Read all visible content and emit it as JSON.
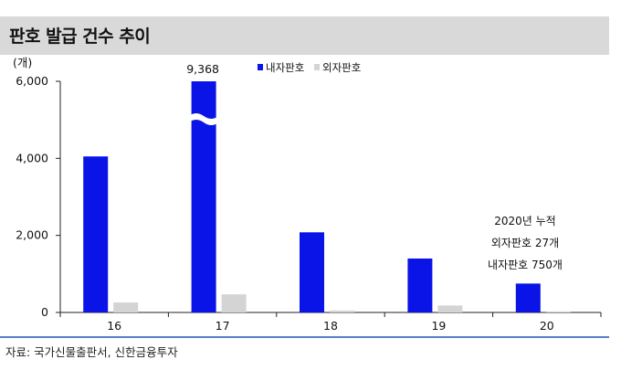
{
  "header": {
    "title": "판호 발급 건수 추이"
  },
  "footer": {
    "source": "자료: 국가신물출판서, 신한금융투자"
  },
  "chart_data": {
    "type": "bar",
    "title": "판호 발급 건수 추이",
    "unit_label": "(개)",
    "categories": [
      "16",
      "17",
      "18",
      "19",
      "20"
    ],
    "series": [
      {
        "name": "내자판호",
        "values": [
          4050,
          9368,
          2080,
          1400,
          750
        ],
        "color": "#0a14e6"
      },
      {
        "name": "외자판호",
        "values": [
          260,
          470,
          50,
          180,
          27
        ],
        "color": "#d4d4d4"
      }
    ],
    "ylim": [
      0,
      6000
    ],
    "yticks": [
      0,
      2000,
      4000,
      6000
    ],
    "ytick_labels": [
      "0",
      "2,000",
      "4,000",
      "6,000"
    ],
    "axis_break": {
      "category": "17",
      "series": "내자판호"
    },
    "data_labels": [
      {
        "category": "17",
        "series": "내자판호",
        "text": "9,368"
      }
    ],
    "annotation": [
      "2020년 누적",
      "외자판호 27개",
      "내자판호 750개"
    ],
    "legend_position": "top-center",
    "grid": false
  }
}
